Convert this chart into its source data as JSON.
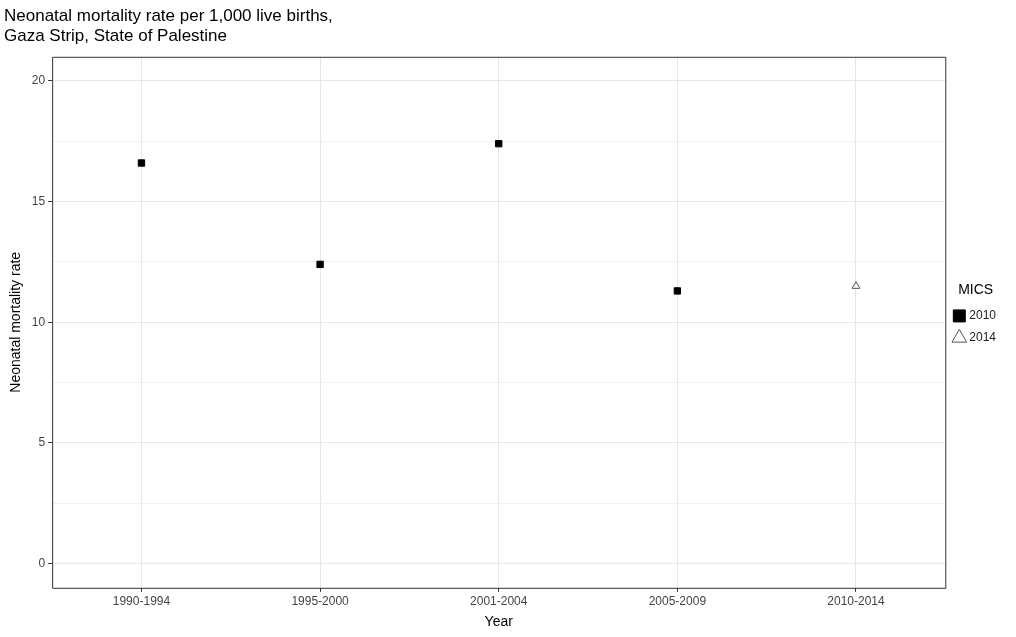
{
  "chart_data": {
    "type": "scatter",
    "title": "Neonatal mortality rate per 1,000 live births,\nGaza Strip, State of Palestine",
    "xlabel": "Year",
    "ylabel": "Neonatal mortality rate",
    "legend_title": "MICS",
    "categories": [
      "1990-1994",
      "1995-2000",
      "2001-2004",
      "2005-2009",
      "2010-2014"
    ],
    "series": [
      {
        "name": "2010",
        "color": "#000000",
        "marker": "square",
        "values": [
          16.6,
          12.4,
          17.4,
          11.3,
          null
        ]
      },
      {
        "name": "2014",
        "color": "#555555",
        "marker": "triangle",
        "values": [
          null,
          null,
          null,
          null,
          11.5
        ]
      }
    ],
    "ylim": [
      -1,
      21
    ],
    "yticks": [
      0,
      {
        "value": 2.5,
        "label": null
      },
      5,
      {
        "value": 7.5,
        "label": null
      },
      10,
      {
        "value": 12.5,
        "label": null
      },
      15,
      {
        "value": 17.5,
        "label": null
      },
      20
    ],
    "grid": true,
    "legend": "right"
  }
}
